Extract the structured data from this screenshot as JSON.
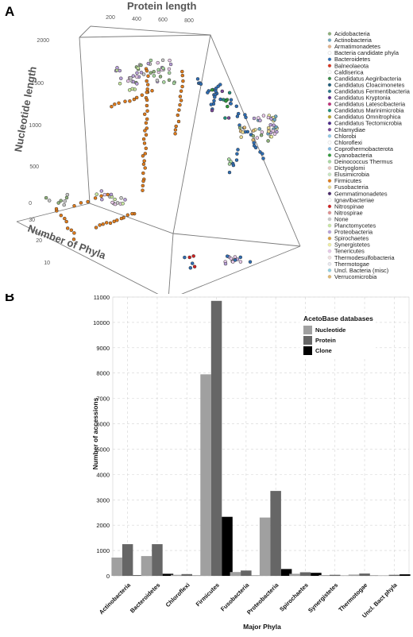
{
  "panel_a": {
    "letter": "A",
    "axes": {
      "x_label": "Protein length",
      "x_ticks": [
        "200",
        "400",
        "600",
        "800"
      ],
      "y_label": "Nucleotide length",
      "y_ticks": [
        "0",
        "500",
        "1000",
        "1500",
        "2000"
      ],
      "z_label": "Number of Phyla",
      "z_ticks": [
        "10",
        "20",
        "30"
      ]
    },
    "legend": [
      {
        "label": "Acidobacteria",
        "color": "#8db07a"
      },
      {
        "label": "Actinobacteria",
        "color": "#6fa9c2"
      },
      {
        "label": "Armatimonadetes",
        "color": "#e3b28a"
      },
      {
        "label": "Bacteria candidate phyla",
        "color": "#ffffff"
      },
      {
        "label": "Bacteroidetes",
        "color": "#2e6db3"
      },
      {
        "label": "Balneolaeota",
        "color": "#d9341f"
      },
      {
        "label": "Caldiserica",
        "color": "#ffffff"
      },
      {
        "label": "Candidatus Aegiribacteria",
        "color": "#3a8a4a"
      },
      {
        "label": "Candidatus Cloacimonetes",
        "color": "#1e5b7a"
      },
      {
        "label": "Candidatus Fermentibacteria",
        "color": "#2b7a8a"
      },
      {
        "label": "Candidatus Kryptonia",
        "color": "#5b2c8a"
      },
      {
        "label": "Candidatus Latescibacteria",
        "color": "#c02f7a"
      },
      {
        "label": "Candidatus Marinimicrobia",
        "color": "#1e8f7a"
      },
      {
        "label": "Candidatus Omnitrophica",
        "color": "#b8a32c"
      },
      {
        "label": "Candidatus Tectomicrobia",
        "color": "#4a2a8a"
      },
      {
        "label": "Chlamydiae",
        "color": "#7a4a9a"
      },
      {
        "label": "Chlorobi",
        "color": "#8fc9e8"
      },
      {
        "label": "Chloroflexi",
        "color": "#ffffff"
      },
      {
        "label": "Coprothermobacterota",
        "color": "#7fb8e0"
      },
      {
        "label": "Cyanobacteria",
        "color": "#2f9a3a"
      },
      {
        "label": "Deinococcus Thermus",
        "color": "#a8d8a0"
      },
      {
        "label": "Dictyoglomi",
        "color": "#e8c8c0"
      },
      {
        "label": "Elusimicrobia",
        "color": "#c8e8c0"
      },
      {
        "label": "Firmicutes",
        "color": "#e07b1a"
      },
      {
        "label": "Fusobacteria",
        "color": "#e8d890"
      },
      {
        "label": "Gemmatimonadetes",
        "color": "#4a2a6a"
      },
      {
        "label": "Ignavibacteriae",
        "color": "#ffffff"
      },
      {
        "label": "Nitrospinae",
        "color": "#d02020"
      },
      {
        "label": "Nitrospirae",
        "color": "#e09090"
      },
      {
        "label": "None",
        "color": "#c8c8c8"
      },
      {
        "label": "Planctomycetes",
        "color": "#c8e8a0"
      },
      {
        "label": "Proteobacteria",
        "color": "#b8a0d8"
      },
      {
        "label": "Spirochaetes",
        "color": "#d8a040"
      },
      {
        "label": "Synergistetes",
        "color": "#f0f0a0"
      },
      {
        "label": "Tenericutes",
        "color": "#e8c8e8"
      },
      {
        "label": "Thermodesulfobacteria",
        "color": "#f0e0e0"
      },
      {
        "label": "Thermotogae",
        "color": "#e8e8f0"
      },
      {
        "label": "Uncl. Bacteria (misc)",
        "color": "#8fd0e0"
      },
      {
        "label": "Verrucomicrobia",
        "color": "#e0b870"
      }
    ]
  },
  "panel_b": {
    "letter": "B"
  },
  "chart_data": {
    "type": "bar",
    "title": "",
    "xlabel": "Major Phyla",
    "ylabel": "Number of accessions",
    "ylim": [
      0,
      11000
    ],
    "y_ticks": [
      0,
      1000,
      2000,
      3000,
      4000,
      5000,
      6000,
      7000,
      8000,
      9000,
      10000,
      11000
    ],
    "grid": true,
    "legend_title": "AcetoBase databases",
    "legend_placement": "top-right",
    "categories": [
      "Actinobacteria",
      "Bacteroidetes",
      "Chloroflexi",
      "Firmicutes",
      "Fusobacteria",
      "Proteobacteria",
      "Spirochaetes",
      "Synergistetes",
      "Thermotogae",
      "Uncl. Bact phyla"
    ],
    "series": [
      {
        "name": "Nucleotide",
        "color": "#a0a0a0",
        "values": [
          720,
          780,
          40,
          7950,
          150,
          2300,
          80,
          30,
          50,
          20
        ]
      },
      {
        "name": "Protein",
        "color": "#666666",
        "values": [
          1250,
          1250,
          70,
          10850,
          210,
          3350,
          140,
          40,
          90,
          40
        ]
      },
      {
        "name": "Clone",
        "color": "#000000",
        "values": [
          20,
          80,
          10,
          2330,
          10,
          270,
          120,
          5,
          10,
          60
        ]
      }
    ]
  }
}
